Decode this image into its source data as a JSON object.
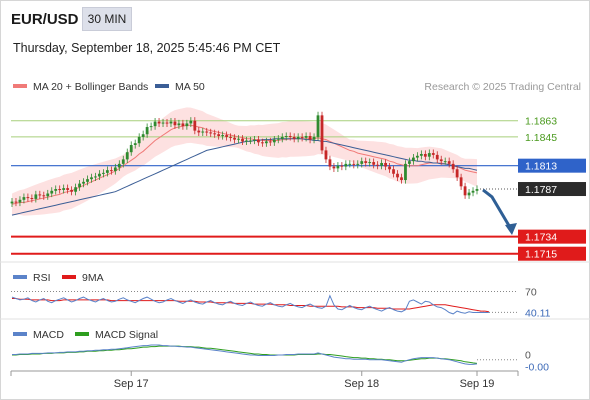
{
  "header": {
    "symbol": "EUR/USD",
    "timeframe": "30 MIN",
    "datetime": "Thursday, September 18, 2025 5:45:46 PM CET"
  },
  "attribution": "Research © 2025 Trading Central",
  "colors": {
    "price_candle": "#c62828",
    "ma20": "#f07a78",
    "ma50": "#3b5e96",
    "bollinger_fill": "#fde1e1",
    "level_blue": "#2f63c9",
    "level_red": "#e01b1b",
    "level_green": "#a7cf7b",
    "current_price_tag": "#2b2b2b",
    "rsi": "#5b83c9",
    "rsi_ma": "#e01b1b",
    "macd": "#5b83c9",
    "macd_signal": "#2e9e1f",
    "arrow": "#2f5f95"
  },
  "chart_data": [
    {
      "type": "line",
      "panel": "price",
      "legend": [
        {
          "name": "MA 20 + Bollinger Bands",
          "color": "#f07a78"
        },
        {
          "name": "MA 50",
          "color": "#3b5e96"
        }
      ],
      "x_ticks": [
        "Sep 17",
        "Sep 18",
        "Sep 19"
      ],
      "ylim": [
        1.1708,
        1.1895
      ],
      "levels": [
        {
          "value": 1.1863,
          "label": "1.1863",
          "kind": "resistance"
        },
        {
          "value": 1.1845,
          "label": "1.1845",
          "kind": "resistance"
        },
        {
          "value": 1.1813,
          "label": "1.1813",
          "kind": "pivot"
        },
        {
          "value": 1.1734,
          "label": "1.1734",
          "kind": "support"
        },
        {
          "value": 1.1715,
          "label": "1.1715",
          "kind": "support"
        }
      ],
      "current_price": {
        "value": 1.1787,
        "label": "1.1787"
      },
      "close_series": [
        1.1773,
        1.1772,
        1.1775,
        1.1778,
        1.1777,
        1.1776,
        1.1781,
        1.178,
        1.1779,
        1.1782,
        1.1785,
        1.1787,
        1.1786,
        1.1788,
        1.1786,
        1.1784,
        1.1789,
        1.1793,
        1.1795,
        1.1798,
        1.18,
        1.1801,
        1.1804,
        1.1805,
        1.1808,
        1.1807,
        1.1811,
        1.1815,
        1.182,
        1.1828,
        1.1836,
        1.1838,
        1.1845,
        1.1848,
        1.1856,
        1.1857,
        1.1862,
        1.186,
        1.1861,
        1.186,
        1.1862,
        1.1858,
        1.186,
        1.1857,
        1.186,
        1.1863,
        1.1852,
        1.185,
        1.1851,
        1.185,
        1.1849,
        1.1848,
        1.1846,
        1.1847,
        1.1845,
        1.1844,
        1.1842,
        1.1843,
        1.184,
        1.1841,
        1.1841,
        1.1842,
        1.1839,
        1.1838,
        1.184,
        1.1839,
        1.1842,
        1.1843,
        1.1845,
        1.1846,
        1.1845,
        1.1843,
        1.1845,
        1.1844,
        1.1846,
        1.1842,
        1.1845,
        1.1869,
        1.183,
        1.182,
        1.1812,
        1.181,
        1.1813,
        1.1812,
        1.1815,
        1.1815,
        1.1814,
        1.1815,
        1.1818,
        1.1816,
        1.1817,
        1.1814,
        1.1813,
        1.1816,
        1.1812,
        1.1809,
        1.1804,
        1.18,
        1.1797,
        1.1815,
        1.1818,
        1.1822,
        1.1824,
        1.1826,
        1.1823,
        1.1827,
        1.1825,
        1.182,
        1.1818,
        1.1818,
        1.1815,
        1.1809,
        1.18,
        1.179,
        1.178,
        1.1783,
        1.1785,
        1.1787
      ],
      "ma20": [
        1.177,
        1.1771,
        1.1772,
        1.1772,
        1.1773,
        1.1774,
        1.1775,
        1.1776,
        1.1777,
        1.1778,
        1.1779,
        1.178,
        1.1781,
        1.1783,
        1.1784,
        1.1785,
        1.1787,
        1.1789,
        1.1791,
        1.1793,
        1.1795,
        1.1797,
        1.1799,
        1.1801,
        1.1803,
        1.1805,
        1.1807,
        1.181,
        1.1813,
        1.1816,
        1.1819,
        1.1822,
        1.1826,
        1.1829,
        1.1833,
        1.1837,
        1.1841,
        1.1844,
        1.1847,
        1.185,
        1.1853,
        1.1855,
        1.1856,
        1.1857,
        1.1858,
        1.1858,
        1.1857,
        1.1856,
        1.1855,
        1.1853,
        1.1852,
        1.1851,
        1.185,
        1.1849,
        1.1848,
        1.1847,
        1.1846,
        1.1845,
        1.1844,
        1.1843,
        1.1843,
        1.1842,
        1.1842,
        1.1841,
        1.1841,
        1.1841,
        1.1841,
        1.1841,
        1.1842,
        1.1842,
        1.1843,
        1.1843,
        1.1843,
        1.1843,
        1.1843,
        1.1843,
        1.1843,
        1.1844,
        1.1843,
        1.1842,
        1.184,
        1.1838,
        1.1836,
        1.1834,
        1.1832,
        1.183,
        1.1829,
        1.1827,
        1.1826,
        1.1825,
        1.1824,
        1.1823,
        1.1822,
        1.1821,
        1.182,
        1.1818,
        1.1817,
        1.1815,
        1.1814,
        1.1813,
        1.1813,
        1.1813,
        1.1813,
        1.1814,
        1.1815,
        1.1816,
        1.1816,
        1.1816,
        1.1816,
        1.1815,
        1.1814,
        1.1813,
        1.1812,
        1.181,
        1.1808,
        1.1807,
        1.1806,
        1.1805
      ],
      "ma50": [
        1.1758,
        1.1759,
        1.176,
        1.1761,
        1.1762,
        1.1763,
        1.1764,
        1.1765,
        1.1766,
        1.1767,
        1.1768,
        1.1769,
        1.177,
        1.1771,
        1.1772,
        1.1773,
        1.1774,
        1.1775,
        1.1776,
        1.1777,
        1.1778,
        1.1779,
        1.178,
        1.1781,
        1.1782,
        1.1783,
        1.1784,
        1.1786,
        1.1788,
        1.179,
        1.1792,
        1.1794,
        1.1796,
        1.1798,
        1.18,
        1.1802,
        1.1804,
        1.1806,
        1.1808,
        1.181,
        1.1812,
        1.1814,
        1.1816,
        1.1818,
        1.182,
        1.1822,
        1.1824,
        1.1826,
        1.1828,
        1.183,
        1.1831,
        1.1832,
        1.1833,
        1.1834,
        1.1835,
        1.1836,
        1.1837,
        1.1838,
        1.1839,
        1.184,
        1.184,
        1.1841,
        1.1841,
        1.1842,
        1.1842,
        1.1842,
        1.1843,
        1.1843,
        1.1843,
        1.1843,
        1.1843,
        1.1843,
        1.1843,
        1.1843,
        1.1842,
        1.1842,
        1.1841,
        1.1841,
        1.184,
        1.184,
        1.1839,
        1.1838,
        1.1837,
        1.1836,
        1.1835,
        1.1834,
        1.1833,
        1.1832,
        1.1831,
        1.183,
        1.1829,
        1.1828,
        1.1827,
        1.1826,
        1.1825,
        1.1824,
        1.1823,
        1.1822,
        1.1821,
        1.182,
        1.1819,
        1.1819,
        1.1818,
        1.1818,
        1.1817,
        1.1817,
        1.1816,
        1.1816,
        1.1815,
        1.1815,
        1.1814,
        1.1813,
        1.1812,
        1.1811,
        1.181,
        1.181,
        1.1809,
        1.1808
      ],
      "projection": {
        "from": 1.1786,
        "to": 1.1738
      }
    },
    {
      "type": "line",
      "panel": "rsi",
      "legend": [
        {
          "name": "RSI",
          "color": "#5b83c9"
        },
        {
          "name": "9MA",
          "color": "#e01b1b"
        }
      ],
      "reference_levels": [
        {
          "value": 70,
          "label": "70"
        }
      ],
      "current_value": {
        "value": 40.11,
        "label": "40.11"
      },
      "ylim": [
        0,
        100
      ],
      "rsi": [
        62,
        60,
        58,
        59,
        61,
        57,
        55,
        58,
        60,
        56,
        54,
        57,
        59,
        61,
        58,
        55,
        57,
        60,
        62,
        59,
        57,
        55,
        58,
        60,
        57,
        55,
        56,
        59,
        61,
        58,
        56,
        54,
        57,
        60,
        62,
        59,
        56,
        54,
        55,
        58,
        60,
        57,
        55,
        53,
        56,
        58,
        55,
        53,
        52,
        55,
        57,
        54,
        52,
        51,
        54,
        56,
        53,
        51,
        50,
        53,
        55,
        52,
        50,
        49,
        52,
        54,
        51,
        49,
        48,
        51,
        53,
        50,
        48,
        47,
        50,
        52,
        49,
        47,
        46,
        49,
        64,
        51,
        45,
        44,
        47,
        50,
        47,
        45,
        44,
        47,
        49,
        46,
        44,
        42,
        45,
        47,
        44,
        42,
        41,
        44,
        56,
        58,
        55,
        52,
        56,
        55,
        51,
        48,
        47,
        44,
        40,
        38,
        42,
        40,
        39,
        41,
        40,
        40,
        40,
        40,
        40
      ],
      "rsi_ma": [
        60,
        60,
        59,
        59,
        59,
        58,
        58,
        58,
        58,
        58,
        57,
        57,
        57,
        58,
        58,
        58,
        58,
        58,
        58,
        58,
        58,
        58,
        58,
        58,
        58,
        57,
        57,
        57,
        57,
        57,
        57,
        57,
        57,
        57,
        57,
        57,
        57,
        57,
        57,
        57,
        57,
        57,
        56,
        56,
        56,
        56,
        56,
        55,
        55,
        55,
        55,
        54,
        54,
        54,
        54,
        54,
        53,
        53,
        53,
        53,
        53,
        52,
        52,
        52,
        52,
        52,
        51,
        51,
        51,
        51,
        50,
        50,
        50,
        50,
        50,
        49,
        49,
        49,
        49,
        49,
        49,
        49,
        49,
        48,
        48,
        48,
        48,
        47,
        47,
        47,
        47,
        47,
        46,
        46,
        46,
        46,
        45,
        45,
        45,
        45,
        45,
        46,
        47,
        48,
        49,
        50,
        51,
        51,
        51,
        51,
        50,
        49,
        48,
        47,
        46,
        45,
        44,
        43,
        42,
        42,
        41
      ]
    },
    {
      "type": "line",
      "panel": "macd",
      "legend": [
        {
          "name": "MACD",
          "color": "#5b83c9"
        },
        {
          "name": "MACD Signal",
          "color": "#2e9e1f"
        }
      ],
      "reference_levels": [
        {
          "value": 0,
          "label": "0"
        }
      ],
      "current_value": {
        "value": -0.0,
        "label": "-0.00"
      },
      "macd": [
        0.001,
        0.001,
        0.0011,
        0.0011,
        0.0011,
        0.0012,
        0.0012,
        0.0012,
        0.0012,
        0.0013,
        0.0013,
        0.0013,
        0.0014,
        0.0014,
        0.0015,
        0.0015,
        0.0015,
        0.0016,
        0.0016,
        0.0017,
        0.0017,
        0.0018,
        0.0018,
        0.0019,
        0.0019,
        0.002,
        0.002,
        0.0021,
        0.0022,
        0.0023,
        0.0024,
        0.0025,
        0.0026,
        0.0027,
        0.0027,
        0.0028,
        0.0028,
        0.0028,
        0.0027,
        0.0027,
        0.0026,
        0.0026,
        0.0025,
        0.0025,
        0.0024,
        0.0024,
        0.0023,
        0.0022,
        0.0021,
        0.002,
        0.0019,
        0.0018,
        0.0017,
        0.0016,
        0.0015,
        0.0014,
        0.0013,
        0.0012,
        0.0011,
        0.001,
        0.0009,
        0.0009,
        0.0008,
        0.0008,
        0.0008,
        0.0008,
        0.0008,
        0.0009,
        0.0009,
        0.001,
        0.001,
        0.001,
        0.0011,
        0.0011,
        0.0011,
        0.0011,
        0.0011,
        0.0013,
        0.0011,
        0.0009,
        0.0007,
        0.0005,
        0.0004,
        0.0003,
        0.0002,
        0.0002,
        0.0001,
        0.0001,
        0.0001,
        0.0001,
        0.0,
        0.0,
        0.0,
        0.0,
        -0.0001,
        -0.0002,
        -0.0003,
        -0.0004,
        -0.0005,
        -0.0002,
        0.0,
        0.0002,
        0.0003,
        0.0004,
        0.0004,
        0.0004,
        0.0004,
        0.0003,
        0.0002,
        0.0001,
        0.0,
        -0.0002,
        -0.0004,
        -0.0006,
        -0.0008,
        -0.0009,
        -0.0009,
        -0.0008
      ],
      "macd_signal": [
        0.0009,
        0.0009,
        0.001,
        0.001,
        0.001,
        0.0011,
        0.0011,
        0.0011,
        0.0012,
        0.0012,
        0.0012,
        0.0013,
        0.0013,
        0.0013,
        0.0014,
        0.0014,
        0.0014,
        0.0015,
        0.0015,
        0.0016,
        0.0016,
        0.0016,
        0.0017,
        0.0017,
        0.0018,
        0.0018,
        0.0019,
        0.0019,
        0.002,
        0.0021,
        0.0021,
        0.0022,
        0.0023,
        0.0024,
        0.0024,
        0.0025,
        0.0025,
        0.0026,
        0.0026,
        0.0026,
        0.0026,
        0.0026,
        0.0026,
        0.0025,
        0.0025,
        0.0025,
        0.0024,
        0.0024,
        0.0023,
        0.0022,
        0.0022,
        0.0021,
        0.002,
        0.0019,
        0.0018,
        0.0017,
        0.0016,
        0.0015,
        0.0014,
        0.0013,
        0.0012,
        0.0011,
        0.0011,
        0.001,
        0.001,
        0.0009,
        0.0009,
        0.0009,
        0.0009,
        0.0009,
        0.0009,
        0.0009,
        0.001,
        0.001,
        0.001,
        0.001,
        0.001,
        0.0011,
        0.0011,
        0.001,
        0.001,
        0.0009,
        0.0008,
        0.0007,
        0.0006,
        0.0005,
        0.0004,
        0.0004,
        0.0003,
        0.0003,
        0.0002,
        0.0002,
        0.0001,
        0.0001,
        0.0,
        0.0,
        -0.0001,
        -0.0002,
        -0.0002,
        -0.0002,
        -0.0001,
        0.0,
        0.0001,
        0.0002,
        0.0002,
        0.0003,
        0.0003,
        0.0003,
        0.0002,
        0.0002,
        0.0001,
        0.0,
        -0.0001,
        -0.0002,
        -0.0004,
        -0.0005,
        -0.0006,
        -0.0007
      ]
    }
  ]
}
